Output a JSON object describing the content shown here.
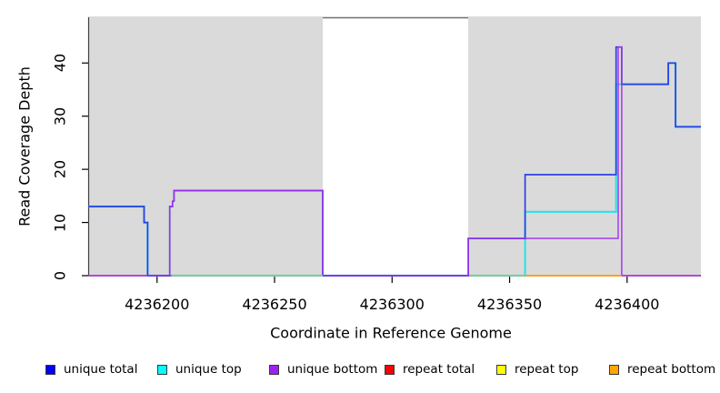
{
  "chart_data": {
    "type": "line",
    "subtype": "step-coverage",
    "title": "",
    "xlabel": "Coordinate in Reference Genome",
    "ylabel": "Read Coverage Depth",
    "xlim": [
      4236170.7,
      4236431.4
    ],
    "ylim": [
      0,
      48.6
    ],
    "x_ticks": [
      4236200,
      4236250,
      4236300,
      4236350,
      4236400
    ],
    "y_ticks": [
      0,
      10,
      20,
      30,
      40
    ],
    "grid": "off",
    "legend_position": "bottom",
    "plot_bg": "#ffffff",
    "shaded_region_color": "#dadada",
    "shaded_regions": [
      {
        "name": "covered-region-left",
        "x0": 4236170.7,
        "x1": 4236270.5
      },
      {
        "name": "covered-region-right",
        "x0": 4236332.4,
        "x1": 4236431.4
      }
    ],
    "series": [
      {
        "name": "repeat top",
        "color": "#f0e000",
        "points": [
          [
            4236170.7,
            0
          ],
          [
            4236431.4,
            0
          ]
        ]
      },
      {
        "name": "unique top",
        "color": "#38dfe8",
        "points": [
          [
            4236170.7,
            13
          ],
          [
            4236194.5,
            13
          ],
          [
            4236194.5,
            10
          ],
          [
            4236196,
            10
          ],
          [
            4236196,
            0
          ],
          [
            4236356.6,
            0
          ],
          [
            4236356.6,
            12
          ],
          [
            4236395.3,
            12
          ],
          [
            4236395.3,
            36
          ],
          [
            4236417.5,
            36
          ],
          [
            4236417.5,
            40
          ],
          [
            4236420.6,
            40
          ],
          [
            4236420.6,
            28
          ],
          [
            4236431.4,
            28
          ]
        ]
      },
      {
        "name": "repeat total",
        "color": "#e94f75",
        "points": [
          [
            4236170.7,
            0
          ],
          [
            4236431.4,
            0
          ]
        ]
      },
      {
        "name": "unique total",
        "color": "#2f3fe3",
        "points": [
          [
            4236170.7,
            13
          ],
          [
            4236194.5,
            13
          ],
          [
            4236194.5,
            10
          ],
          [
            4236196,
            10
          ],
          [
            4236196,
            0
          ],
          [
            4236205.4,
            0
          ],
          [
            4236205.4,
            13
          ],
          [
            4236206.6,
            13
          ],
          [
            4236206.6,
            14
          ],
          [
            4236207.2,
            14
          ],
          [
            4236207.2,
            16
          ],
          [
            4236270.5,
            16
          ],
          [
            4236270.5,
            0
          ],
          [
            4236332.4,
            0
          ],
          [
            4236332.4,
            7
          ],
          [
            4236356.6,
            7
          ],
          [
            4236356.6,
            19
          ],
          [
            4236395.3,
            19
          ],
          [
            4236395.3,
            43
          ],
          [
            4236397.7,
            43
          ],
          [
            4236397.7,
            36
          ],
          [
            4236417.5,
            36
          ],
          [
            4236417.5,
            40
          ],
          [
            4236420.6,
            40
          ],
          [
            4236420.6,
            28
          ],
          [
            4236431.4,
            28
          ]
        ]
      },
      {
        "name": "unique bottom",
        "color": "#9d2fef",
        "points": [
          [
            4236170.7,
            0
          ],
          [
            4236205.4,
            0
          ],
          [
            4236205.4,
            13
          ],
          [
            4236206.6,
            13
          ],
          [
            4236206.6,
            14
          ],
          [
            4236207.2,
            14
          ],
          [
            4236207.2,
            16
          ],
          [
            4236270.5,
            16
          ],
          [
            4236270.5,
            0
          ],
          [
            4236332.4,
            0
          ],
          [
            4236332.4,
            7
          ],
          [
            4236396.2,
            7
          ],
          [
            4236396.2,
            43
          ],
          [
            4236397.7,
            43
          ],
          [
            4236397.7,
            0
          ],
          [
            4236431.4,
            0
          ]
        ]
      },
      {
        "name": "repeat bottom",
        "color": "#ffa117",
        "points": [
          [
            4236356.6,
            0
          ],
          [
            4236397.7,
            0
          ]
        ]
      }
    ],
    "zero_line_overlays": [
      {
        "name": "green-zero-line-1",
        "color": "#85d88a",
        "x0": 4236206.3,
        "x1": 4236270.5,
        "y": 0
      },
      {
        "name": "green-zero-line-2",
        "color": "#85d88a",
        "x0": 4236332.8,
        "x1": 4236356.6,
        "y": 0
      }
    ],
    "legend": [
      {
        "label": "unique total",
        "color": "#0000ff"
      },
      {
        "label": "unique top",
        "color": "#00ffff"
      },
      {
        "label": "unique bottom",
        "color": "#a020f0"
      },
      {
        "label": "repeat total",
        "color": "#ff0000"
      },
      {
        "label": "repeat top",
        "color": "#ffff00"
      },
      {
        "label": "repeat bottom",
        "color": "#ffa500"
      }
    ]
  }
}
